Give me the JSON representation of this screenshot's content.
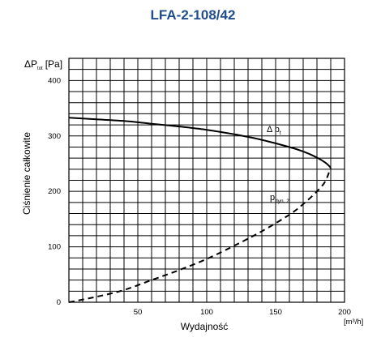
{
  "chart_data": {
    "type": "line",
    "title": "LFA-2-108/42",
    "ylabel_main": "ΔP",
    "ylabel_sub": "tot",
    "ylabel_unit": "[Pa]",
    "ylabel_side": "Ciśnienie całkowite",
    "xlabel": "Wydajność",
    "xunit": "[m³/h]",
    "xlim": [
      0,
      200
    ],
    "ylim": [
      0,
      440
    ],
    "x_ticks": [
      50,
      100,
      150,
      200
    ],
    "y_ticks": [
      0,
      100,
      200,
      300,
      400
    ],
    "grid": true,
    "series": [
      {
        "name": "Δ p_t",
        "label_main": "Δ p",
        "label_sub": "t",
        "style": "solid",
        "x": [
          0,
          20,
          40,
          60,
          80,
          100,
          120,
          140,
          160,
          170,
          180,
          186,
          190
        ],
        "y": [
          333,
          330,
          327,
          322,
          317,
          311,
          303,
          293,
          280,
          272,
          261,
          252,
          243
        ]
      },
      {
        "name": "p_dyn,2",
        "label_main": "p",
        "label_sub": "dyn, 2",
        "style": "dashed",
        "x": [
          0,
          20,
          40,
          60,
          80,
          100,
          120,
          140,
          160,
          170,
          180,
          186,
          190
        ],
        "y": [
          0,
          10,
          22,
          40,
          58,
          78,
          102,
          128,
          158,
          177,
          200,
          218,
          243
        ]
      }
    ]
  }
}
